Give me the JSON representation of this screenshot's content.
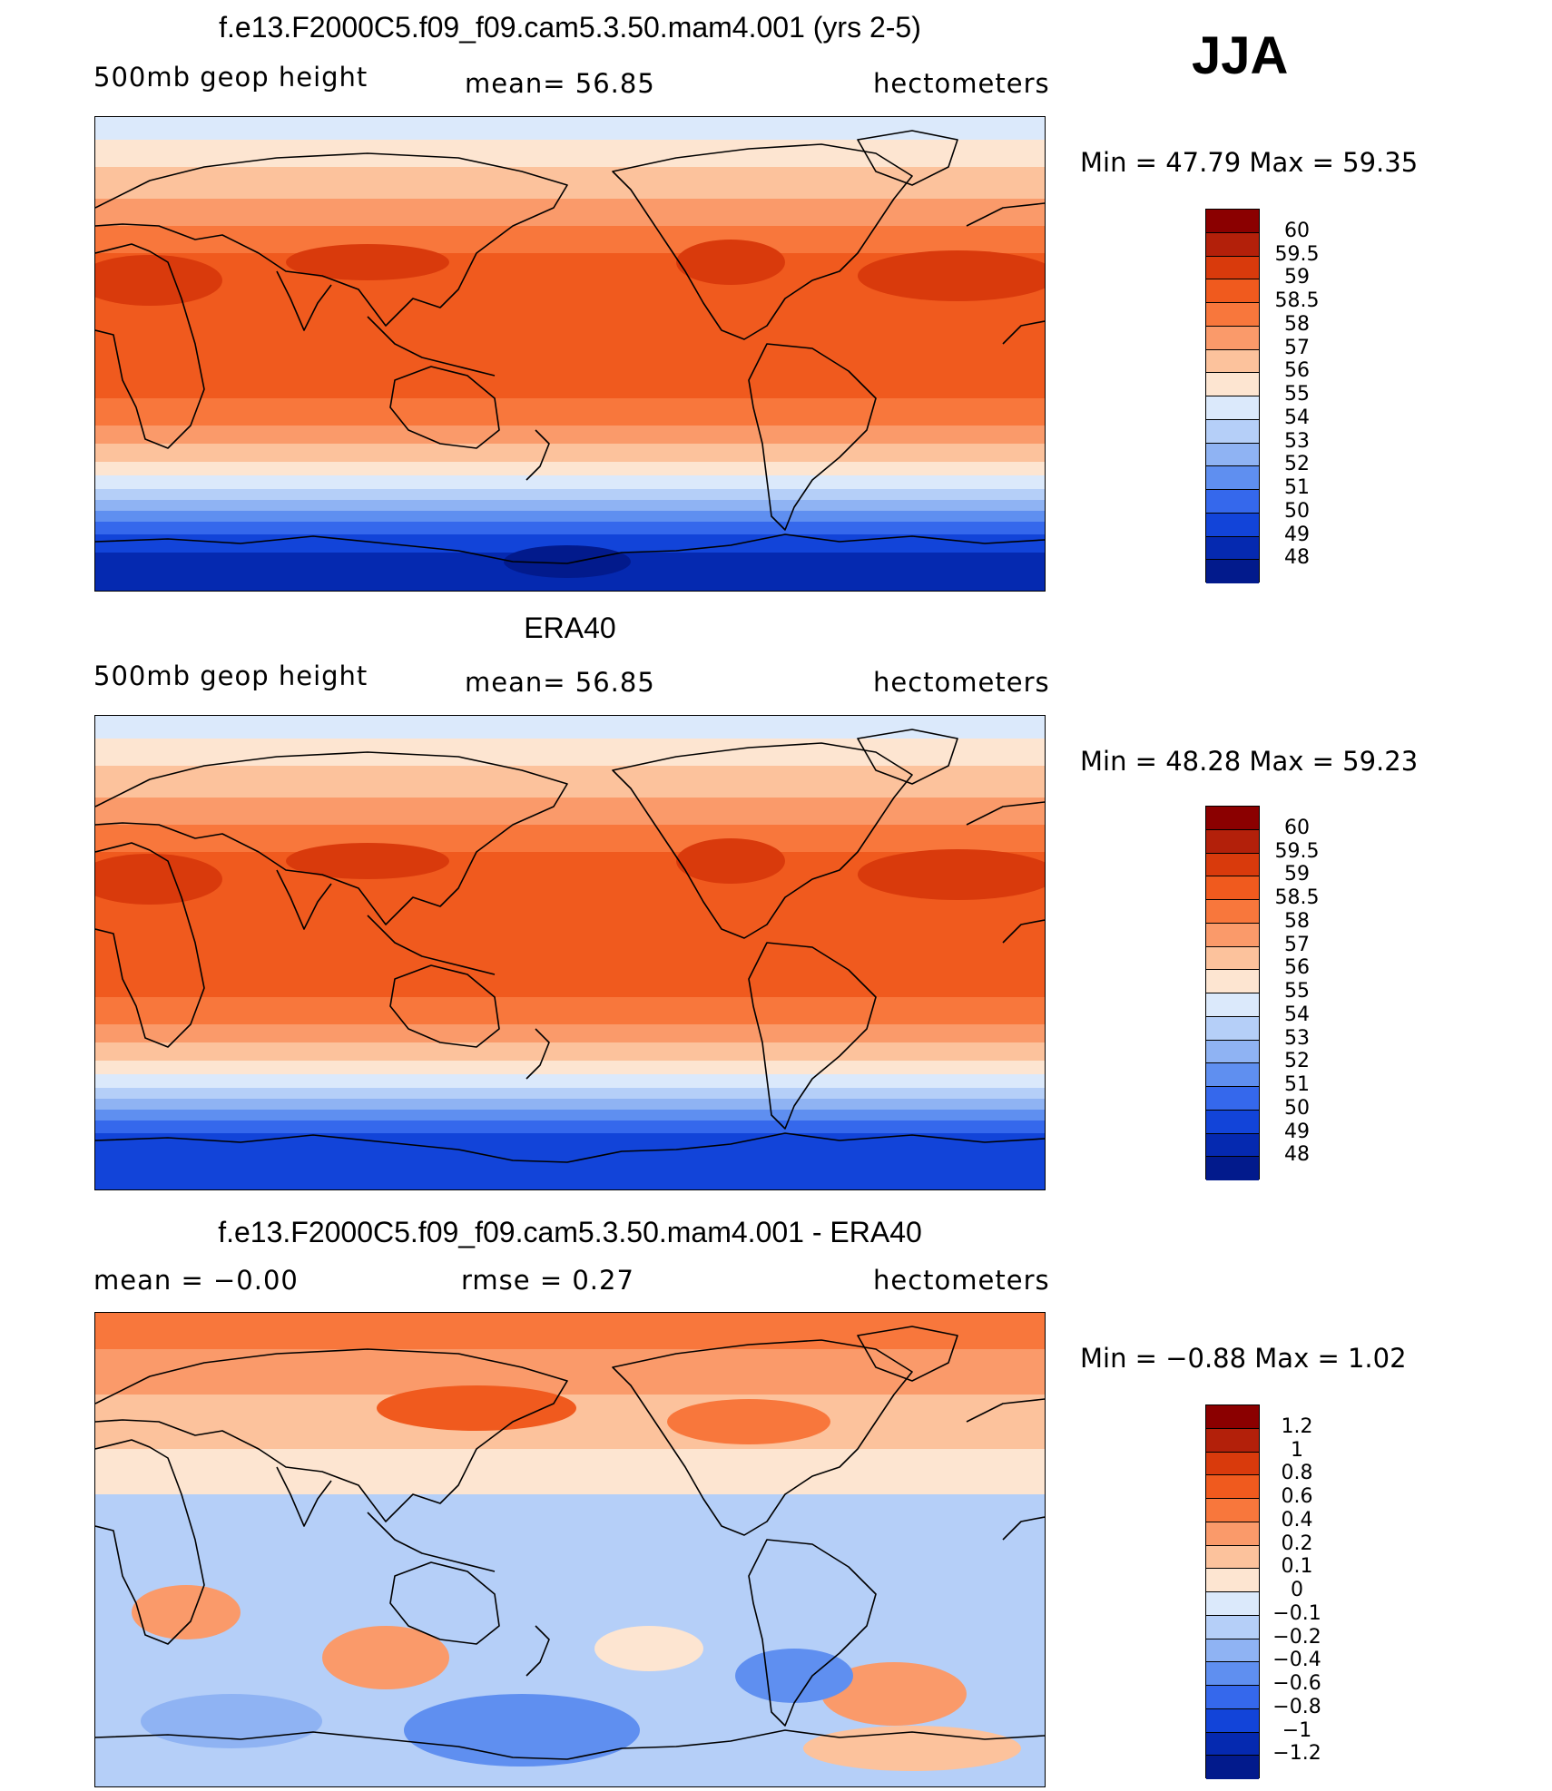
{
  "season": "JJA",
  "panels": [
    {
      "title": "f.e13.F2000C5.f09_f09.cam5.3.50.mam4.001 (yrs 2-5)",
      "left_label": "500mb  geop  height",
      "center_label": "mean=   56.85",
      "right_label": "hectometers",
      "min_max": "Min  =    47.79  Max  =    59.35",
      "colorbar": {
        "labels": [
          "60",
          "59.5",
          "59",
          "58.5",
          "58",
          "57",
          "56",
          "55",
          "54",
          "53",
          "52",
          "51",
          "50",
          "49",
          "48"
        ],
        "colors": [
          "#8b0000",
          "#b3200a",
          "#d93a0c",
          "#f05a1e",
          "#f8773c",
          "#fa9a6a",
          "#fcc29c",
          "#fde5d1",
          "#dbe9fb",
          "#b5cff8",
          "#8fb3f3",
          "#5f8ff0",
          "#3568ec",
          "#1244d9",
          "#0529b0",
          "#021a8c"
        ]
      },
      "map_type": "absolute"
    },
    {
      "title": "ERA40",
      "left_label": "500mb  geop  height",
      "center_label": "mean=   56.85",
      "right_label": "hectometers",
      "min_max": "Min  =    48.28  Max  =    59.23",
      "colorbar": {
        "labels": [
          "60",
          "59.5",
          "59",
          "58.5",
          "58",
          "57",
          "56",
          "55",
          "54",
          "53",
          "52",
          "51",
          "50",
          "49",
          "48"
        ],
        "colors": [
          "#8b0000",
          "#b3200a",
          "#d93a0c",
          "#f05a1e",
          "#f8773c",
          "#fa9a6a",
          "#fcc29c",
          "#fde5d1",
          "#dbe9fb",
          "#b5cff8",
          "#8fb3f3",
          "#5f8ff0",
          "#3568ec",
          "#1244d9",
          "#0529b0",
          "#021a8c"
        ]
      },
      "map_type": "absolute"
    },
    {
      "title": "f.e13.F2000C5.f09_f09.cam5.3.50.mam4.001 - ERA40",
      "left_label": "mean  =    −0.00",
      "center_label": "rmse  =     0.27",
      "right_label": "hectometers",
      "min_max": "Min  =   −0.88  Max  =     1.02",
      "colorbar": {
        "labels": [
          "1.2",
          "1",
          "0.8",
          "0.6",
          "0.4",
          "0.2",
          "0.1",
          "0",
          "−0.1",
          "−0.2",
          "−0.4",
          "−0.6",
          "−0.8",
          "−1",
          "−1.2"
        ],
        "colors": [
          "#8b0000",
          "#b3200a",
          "#d93a0c",
          "#f05a1e",
          "#f8773c",
          "#fa9a6a",
          "#fcc29c",
          "#fde5d1",
          "#dbe9fb",
          "#b5cff8",
          "#8fb3f3",
          "#5f8ff0",
          "#3568ec",
          "#1244d9",
          "#0529b0",
          "#021a8c"
        ]
      },
      "map_type": "difference"
    }
  ]
}
